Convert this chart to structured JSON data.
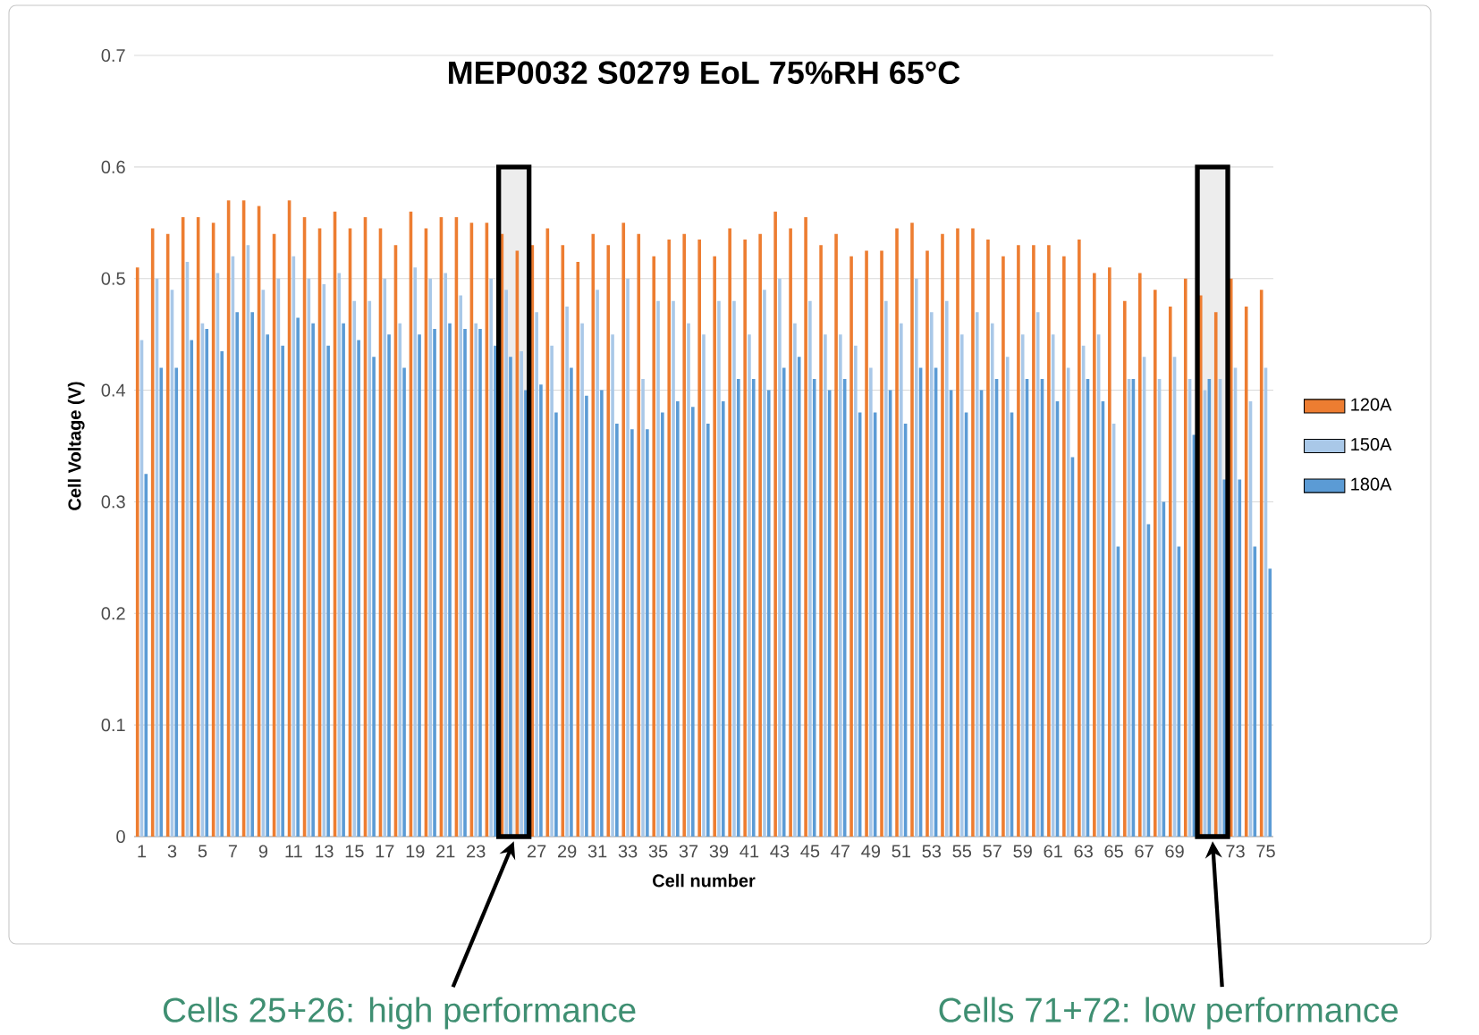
{
  "chart_data": {
    "type": "bar",
    "title": "MEP0032 S0279 EoL 75%RH 65°C",
    "xlabel": "Cell number",
    "ylabel": "Cell Voltage (V)",
    "x": [
      1,
      2,
      3,
      4,
      5,
      6,
      7,
      8,
      9,
      10,
      11,
      12,
      13,
      14,
      15,
      16,
      17,
      18,
      19,
      20,
      21,
      22,
      23,
      24,
      25,
      26,
      27,
      28,
      29,
      30,
      31,
      32,
      33,
      34,
      35,
      36,
      37,
      38,
      39,
      40,
      41,
      42,
      43,
      44,
      45,
      46,
      47,
      48,
      49,
      50,
      51,
      52,
      53,
      54,
      55,
      56,
      57,
      58,
      59,
      60,
      61,
      62,
      63,
      64,
      65,
      66,
      67,
      68,
      69,
      70,
      71,
      72,
      73,
      74,
      75
    ],
    "xlim": [
      0.5,
      75.5
    ],
    "xticks": [
      1,
      3,
      5,
      7,
      9,
      11,
      13,
      15,
      17,
      19,
      21,
      23,
      27,
      29,
      31,
      33,
      35,
      37,
      39,
      41,
      43,
      45,
      47,
      49,
      51,
      53,
      55,
      57,
      59,
      61,
      63,
      65,
      67,
      69,
      73,
      75
    ],
    "series": [
      {
        "name": "120A",
        "color": "#ed7d31",
        "values": [
          0.51,
          0.545,
          0.54,
          0.555,
          0.555,
          0.55,
          0.57,
          0.57,
          0.565,
          0.54,
          0.57,
          0.555,
          0.545,
          0.56,
          0.545,
          0.555,
          0.545,
          0.53,
          0.56,
          0.545,
          0.555,
          0.555,
          0.55,
          0.55,
          0.54,
          0.525,
          0.53,
          0.545,
          0.53,
          0.515,
          0.54,
          0.53,
          0.55,
          0.54,
          0.52,
          0.535,
          0.54,
          0.535,
          0.52,
          0.545,
          0.535,
          0.54,
          0.56,
          0.545,
          0.555,
          0.53,
          0.54,
          0.52,
          0.525,
          0.525,
          0.545,
          0.55,
          0.525,
          0.54,
          0.545,
          0.545,
          0.535,
          0.52,
          0.53,
          0.53,
          0.53,
          0.52,
          0.535,
          0.505,
          0.51,
          0.48,
          0.505,
          0.49,
          0.475,
          0.5,
          0.485,
          0.47,
          0.5,
          0.475,
          0.49
        ]
      },
      {
        "name": "150A",
        "color": "#a9c8e8",
        "values": [
          0.445,
          0.5,
          0.49,
          0.515,
          0.46,
          0.505,
          0.52,
          0.53,
          0.49,
          0.5,
          0.52,
          0.5,
          0.495,
          0.505,
          0.48,
          0.48,
          0.5,
          0.46,
          0.51,
          0.5,
          0.505,
          0.485,
          0.46,
          0.5,
          0.49,
          0.435,
          0.47,
          0.44,
          0.475,
          0.46,
          0.49,
          0.45,
          0.5,
          0.41,
          0.48,
          0.48,
          0.46,
          0.45,
          0.48,
          0.48,
          0.45,
          0.49,
          0.5,
          0.46,
          0.48,
          0.45,
          0.45,
          0.44,
          0.42,
          0.48,
          0.46,
          0.5,
          0.47,
          0.48,
          0.45,
          0.47,
          0.46,
          0.43,
          0.45,
          0.47,
          0.45,
          0.42,
          0.44,
          0.45,
          0.37,
          0.41,
          0.43,
          0.41,
          0.43,
          0.41,
          0.4,
          0.41,
          0.42,
          0.39,
          0.42
        ]
      },
      {
        "name": "180A",
        "color": "#5b9bd5",
        "values": [
          0.325,
          0.42,
          0.42,
          0.445,
          0.455,
          0.435,
          0.47,
          0.47,
          0.45,
          0.44,
          0.465,
          0.46,
          0.44,
          0.46,
          0.445,
          0.43,
          0.45,
          0.42,
          0.45,
          0.455,
          0.46,
          0.455,
          0.455,
          0.44,
          0.43,
          0.4,
          0.405,
          0.38,
          0.42,
          0.395,
          0.4,
          0.37,
          0.365,
          0.365,
          0.38,
          0.39,
          0.385,
          0.37,
          0.39,
          0.41,
          0.41,
          0.4,
          0.42,
          0.43,
          0.41,
          0.4,
          0.41,
          0.38,
          0.38,
          0.4,
          0.37,
          0.42,
          0.42,
          0.4,
          0.38,
          0.4,
          0.41,
          0.38,
          0.41,
          0.41,
          0.39,
          0.34,
          0.41,
          0.39,
          0.26,
          0.41,
          0.28,
          0.3,
          0.26,
          0.36,
          0.41,
          0.32,
          0.32,
          0.26,
          0.24
        ]
      }
    ],
    "ylim": [
      0,
      0.7
    ],
    "yticks": [
      0,
      0.1,
      0.2,
      0.3,
      0.4,
      0.5,
      0.6,
      0.7
    ],
    "grid": "y",
    "legend": "right",
    "bands": [
      {
        "axis": "x",
        "from": 24.5,
        "to": 26.5,
        "label": "Cells 25+26: high performance"
      },
      {
        "axis": "x",
        "from": 70.5,
        "to": 72.5,
        "label": "Cells 71+72: low performance"
      }
    ]
  }
}
